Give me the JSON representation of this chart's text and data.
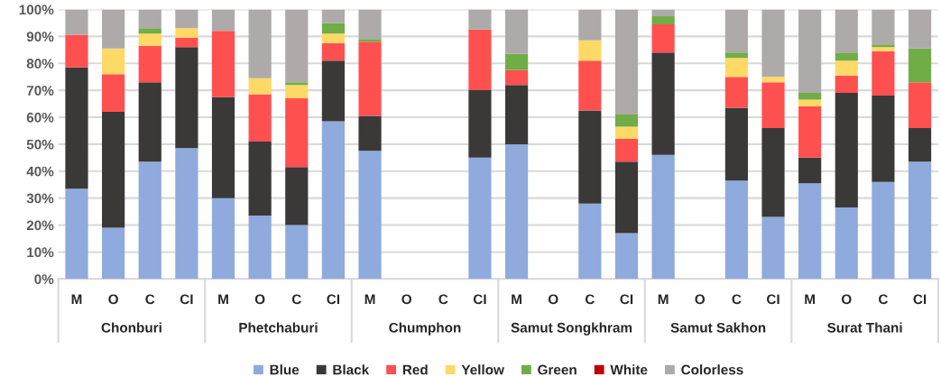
{
  "chart_data": {
    "type": "bar",
    "stacked": true,
    "categories": [
      "M",
      "O",
      "C",
      "CI",
      "M",
      "O",
      "C",
      "CI",
      "M",
      "O",
      "C",
      "CI",
      "M",
      "O",
      "C",
      "CI",
      "M",
      "O",
      "C",
      "CI",
      "M",
      "O",
      "C",
      "CI"
    ],
    "annotations": [
      "Chonburi",
      "Phetchaburi",
      "Chumphon",
      "Samut Songkhram",
      "Samut Sakhon",
      "Surat Thani"
    ],
    "series": [
      {
        "name": "Blue",
        "color": "#8faadc",
        "values": [
          33.5,
          19,
          43.5,
          48.5,
          30,
          23.5,
          20,
          58.5,
          47.5,
          null,
          null,
          45,
          50,
          null,
          28,
          17,
          46,
          null,
          36.5,
          23,
          35.5,
          26.5,
          36,
          43.5
        ]
      },
      {
        "name": "Black",
        "color": "#3b3838",
        "values": [
          45,
          43,
          29.5,
          37.5,
          37.5,
          27.5,
          21.5,
          22.5,
          13,
          null,
          null,
          25,
          22,
          null,
          34.5,
          26.5,
          38,
          null,
          27,
          33,
          9.5,
          42.5,
          32,
          12.5
        ]
      },
      {
        "name": "Red",
        "color": "#ff5050",
        "values": [
          12,
          14,
          13.5,
          3.5,
          24.5,
          17.5,
          25.5,
          6.5,
          27.5,
          null,
          null,
          22.5,
          5.5,
          null,
          18.5,
          8.5,
          10.5,
          null,
          11.5,
          17,
          19,
          6.5,
          16.5,
          17
        ]
      },
      {
        "name": "Yellow",
        "color": "#ffd966",
        "values": [
          0,
          9.5,
          4.5,
          3.5,
          0,
          6,
          5,
          3.5,
          0,
          null,
          null,
          0,
          0,
          null,
          7.5,
          4.5,
          0,
          null,
          7,
          2,
          2.5,
          5.5,
          1.5,
          0
        ]
      },
      {
        "name": "Green",
        "color": "#70ad47",
        "values": [
          0,
          0,
          2,
          0,
          0,
          0,
          1,
          4,
          1,
          null,
          null,
          0,
          6,
          null,
          0,
          4.5,
          3,
          null,
          2,
          0,
          2.5,
          3,
          1,
          12.5
        ]
      },
      {
        "name": "White",
        "color": "#c00000",
        "values": [
          0,
          0,
          0,
          0,
          0,
          0,
          0,
          0,
          0,
          null,
          null,
          0,
          0,
          null,
          0,
          0,
          0,
          null,
          0,
          0,
          0,
          0,
          0,
          0
        ]
      },
      {
        "name": "Colorless",
        "color": "#aeaaaa",
        "values": [
          9.5,
          14.5,
          7,
          7,
          8,
          25.5,
          27,
          5,
          11,
          null,
          null,
          7.5,
          16.5,
          null,
          11.5,
          39,
          2.5,
          null,
          16,
          25,
          31,
          16,
          13,
          14.5
        ]
      }
    ],
    "ylim": [
      0,
      100
    ],
    "yticks": [
      {
        "value": 0,
        "label": "0%"
      },
      {
        "value": 10,
        "label": "10%"
      },
      {
        "value": 20,
        "label": "20%"
      },
      {
        "value": 30,
        "label": "30%"
      },
      {
        "value": 40,
        "label": "40%"
      },
      {
        "value": 50,
        "label": "50%"
      },
      {
        "value": 60,
        "label": "60%"
      },
      {
        "value": 70,
        "label": "70%"
      },
      {
        "value": 80,
        "label": "80%"
      },
      {
        "value": 90,
        "label": "90%"
      },
      {
        "value": 100,
        "label": "100%"
      }
    ],
    "grid": "y",
    "legend": "bottom"
  }
}
